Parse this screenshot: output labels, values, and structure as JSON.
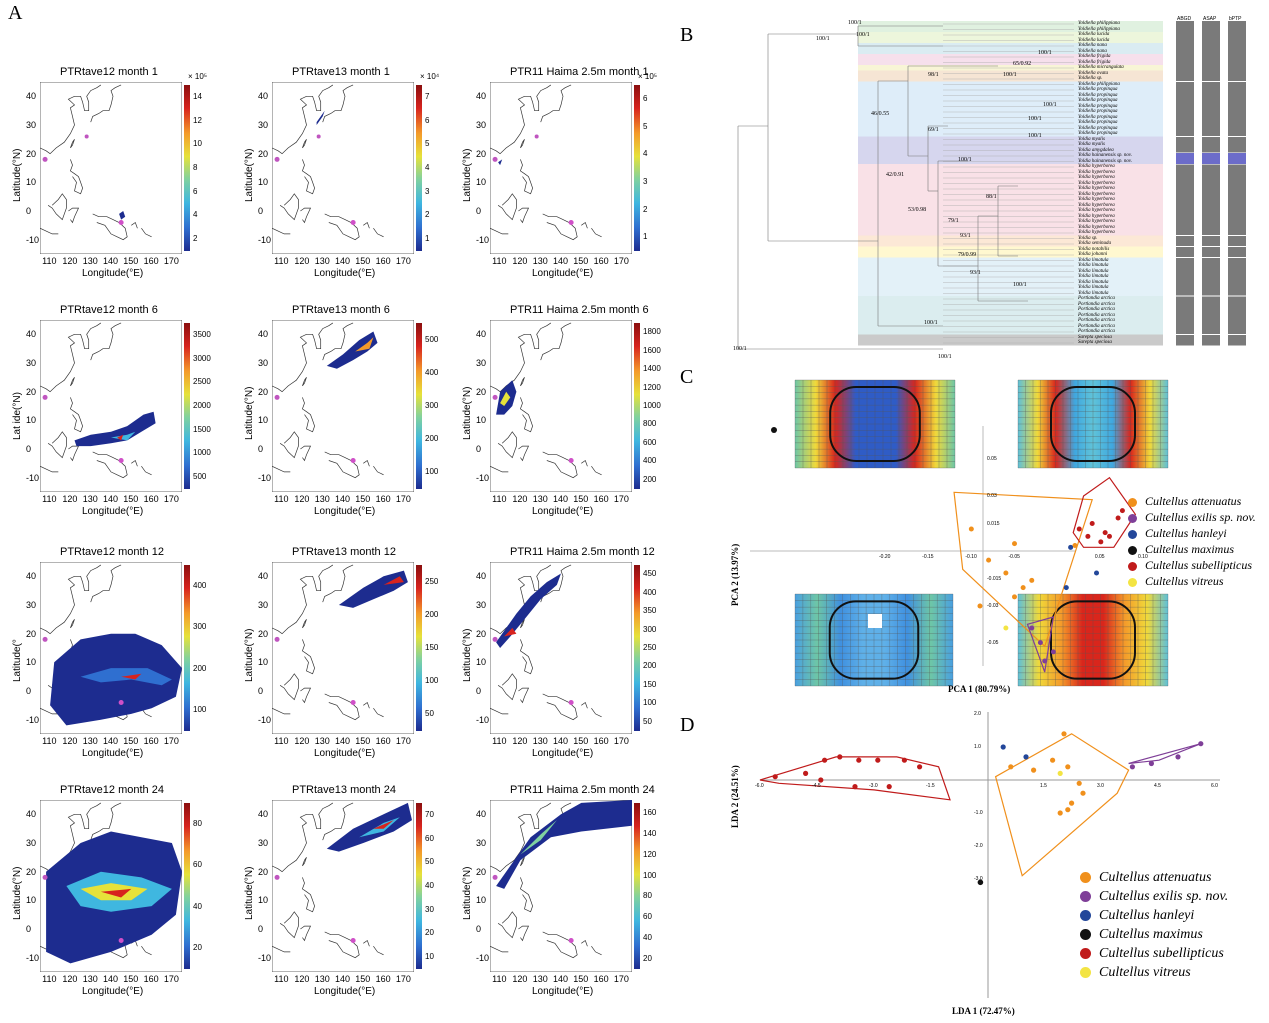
{
  "panels": {
    "a": "A",
    "b": "B",
    "c": "C",
    "d": "D"
  },
  "maps": {
    "titles": [
      [
        "PTRtave12    month 1",
        "PTRtave13    month 1",
        "PTR11   Haima   2.5m   month 1"
      ],
      [
        "PTRtave12    month 6",
        "PTRtave13    month 6",
        "PTR11   Haima   2.5m   month 6"
      ],
      [
        "PTRtave12    month 12",
        "PTRtave13    month 12",
        "PTR11   Haima   2.5m   month 12"
      ],
      [
        "PTRtave12    month 24",
        "PTRtave13    month 24",
        "PTR11   Haima   2.5m   month 24"
      ]
    ],
    "xlabel": "Longitude(°E)",
    "ylabel": "Latitude(°N)",
    "ylabel_cut_r2": "Lat    ide(°N)",
    "ylabel_cut_r3": "Latitude(°",
    "lon_ticks": [
      "110",
      "120",
      "130",
      "140",
      "150",
      "160",
      "170"
    ],
    "lat_ticks": [
      "40",
      "30",
      "20",
      "10",
      "0",
      "-10"
    ],
    "colorbars": [
      [
        {
          "ticks": [
            "14",
            "12",
            "10",
            "8",
            "6",
            "4",
            "2"
          ],
          "exp": "× 10⁵"
        },
        {
          "ticks": [
            "7",
            "6",
            "5",
            "4",
            "3",
            "2",
            "1"
          ],
          "exp": "× 10⁴"
        },
        {
          "ticks": [
            "6",
            "5",
            "4",
            "3",
            "2",
            "1"
          ],
          "exp": "× 10⁵"
        }
      ],
      [
        {
          "ticks": [
            "3500",
            "3000",
            "2500",
            "2000",
            "1500",
            "1000",
            "500"
          ],
          "exp": ""
        },
        {
          "ticks": [
            "500",
            "400",
            "300",
            "200",
            "100"
          ],
          "exp": ""
        },
        {
          "ticks": [
            "1800",
            "1600",
            "1400",
            "1200",
            "1000",
            "800",
            "600",
            "400",
            "200"
          ],
          "exp": ""
        }
      ],
      [
        {
          "ticks": [
            "400",
            "300",
            "200",
            "100"
          ],
          "exp": ""
        },
        {
          "ticks": [
            "250",
            "200",
            "150",
            "100",
            "50"
          ],
          "exp": ""
        },
        {
          "ticks": [
            "450",
            "400",
            "350",
            "300",
            "250",
            "200",
            "150",
            "100",
            "50"
          ],
          "exp": ""
        }
      ],
      [
        {
          "ticks": [
            "80",
            "60",
            "40",
            "20"
          ],
          "exp": ""
        },
        {
          "ticks": [
            "70",
            "60",
            "50",
            "40",
            "30",
            "20",
            "10"
          ],
          "exp": ""
        },
        {
          "ticks": [
            "160",
            "140",
            "120",
            "100",
            "80",
            "60",
            "40",
            "20"
          ],
          "exp": ""
        }
      ]
    ],
    "palette": [
      "#1d2c8f",
      "#2f6fd0",
      "#3fb7e0",
      "#7fd1a0",
      "#e6e23a",
      "#f49a2a",
      "#d7231e",
      "#8b0f0f"
    ]
  },
  "tree": {
    "column_headers": [
      "ABGD",
      "ASAP",
      "bPTP"
    ],
    "taxa": [
      "Yoldiella philippiana",
      "Yoldiella philippiana",
      "Yoldiella lucida",
      "Yoldiella lucida",
      "Yoldiella nana",
      "Yoldiella nana",
      "Yoldiella frigida",
      "Yoldiella frigida",
      "Yoldiella micrangulata",
      "Yoldiella ovata",
      "Yoldiella sp.",
      "Yoldiella philippiana",
      "Yoldiella propinqua",
      "Yoldiella propinqua",
      "Yoldiella propinqua",
      "Yoldiella propinqua",
      "Yoldiella propinqua",
      "Yoldiella propinqua",
      "Yoldiella propinqua",
      "Yoldiella propinqua",
      "Yoldiella propinqua",
      "Yoldia myalis",
      "Yoldia myalis",
      "Yoldia amygdalea",
      "Yoldia hainanensis sp. nov.",
      "Yoldia hainanensis sp. nov.",
      "Yoldia hyperborea",
      "Yoldia hyperborea",
      "Yoldia hyperborea",
      "Yoldia hyperborea",
      "Yoldia hyperborea",
      "Yoldia hyperborea",
      "Yoldia hyperborea",
      "Yoldia hyperborea",
      "Yoldia hyperborea",
      "Yoldia hyperborea",
      "Yoldia hyperborea",
      "Yoldia hyperborea",
      "Yoldia hyperborea",
      "Yoldia sp.",
      "Yoldia seminuda",
      "Yoldia notabilis",
      "Yoldia johanni",
      "Yoldia limatula",
      "Yoldia limatula",
      "Yoldia limatula",
      "Yoldia limatula",
      "Yoldia limatula",
      "Yoldia limatula",
      "Yoldia limatula",
      "Portlandia arctica",
      "Portlandia arctica",
      "Portlandia arctica",
      "Portlandia arctica",
      "Portlandia arctica",
      "Portlandia arctica",
      "Portlandia arctica",
      "Sarepta speciosa",
      "Sarepta speciosa"
    ],
    "node_labels": [
      "100/1",
      "100/1",
      "100/1",
      "100/1",
      "65/0.92",
      "100/1",
      "98/1",
      "100/1",
      "46/0.55",
      "100/1",
      "69/1",
      "100/1",
      "100/1",
      "42/0.91",
      "53/0.98",
      "88/1",
      "79/1",
      "93/1",
      "79/0.99",
      "93/1",
      "100/1",
      "100/1",
      "100/1",
      "100/1"
    ]
  },
  "pca": {
    "xlabel": "PCA 1 (80.79%)",
    "ylabel": "PCA 2 (13.97%)",
    "x_ticks": [
      "-0.20",
      "-0.15",
      "-0.10",
      "-0.05",
      "0.05",
      "0.10"
    ],
    "y_ticks": [
      "0.05",
      "0.03",
      "0.015",
      "-0.015",
      "-0.03",
      "-0.05"
    ],
    "legend": [
      {
        "name": "Cultellus attenuatus",
        "color": "#f0901c"
      },
      {
        "name": "Cultellus exilis sp. nov.",
        "color": "#7f3f98"
      },
      {
        "name": "Cultellus hanleyi",
        "color": "#23479a"
      },
      {
        "name": "Cultellus maximus",
        "color": "#111111"
      },
      {
        "name": "Cultellus subellipticus",
        "color": "#c01b1b"
      },
      {
        "name": "Cultellus vitreus",
        "color": "#f3e443"
      }
    ]
  },
  "lda": {
    "xlabel": "LDA 1 (72.47%)",
    "ylabel": "LDA 2 (24.51%)",
    "x_ticks": [
      "-6.0",
      "-4.5",
      "-3.0",
      "-1.5",
      "1.5",
      "3.0",
      "4.5",
      "6.0"
    ],
    "y_ticks": [
      "2.0",
      "1.0",
      "-1.0",
      "-2.0",
      "-3.0"
    ],
    "legend": [
      {
        "name": "Cultellus attenuatus",
        "color": "#f0901c"
      },
      {
        "name": "Cultellus exilis sp. nov.",
        "color": "#7f3f98"
      },
      {
        "name": "Cultellus hanleyi",
        "color": "#23479a"
      },
      {
        "name": "Cultellus maximus",
        "color": "#111111"
      },
      {
        "name": "Cultellus subellipticus",
        "color": "#c01b1b"
      },
      {
        "name": "Cultellus vitreus",
        "color": "#f3e443"
      }
    ]
  }
}
